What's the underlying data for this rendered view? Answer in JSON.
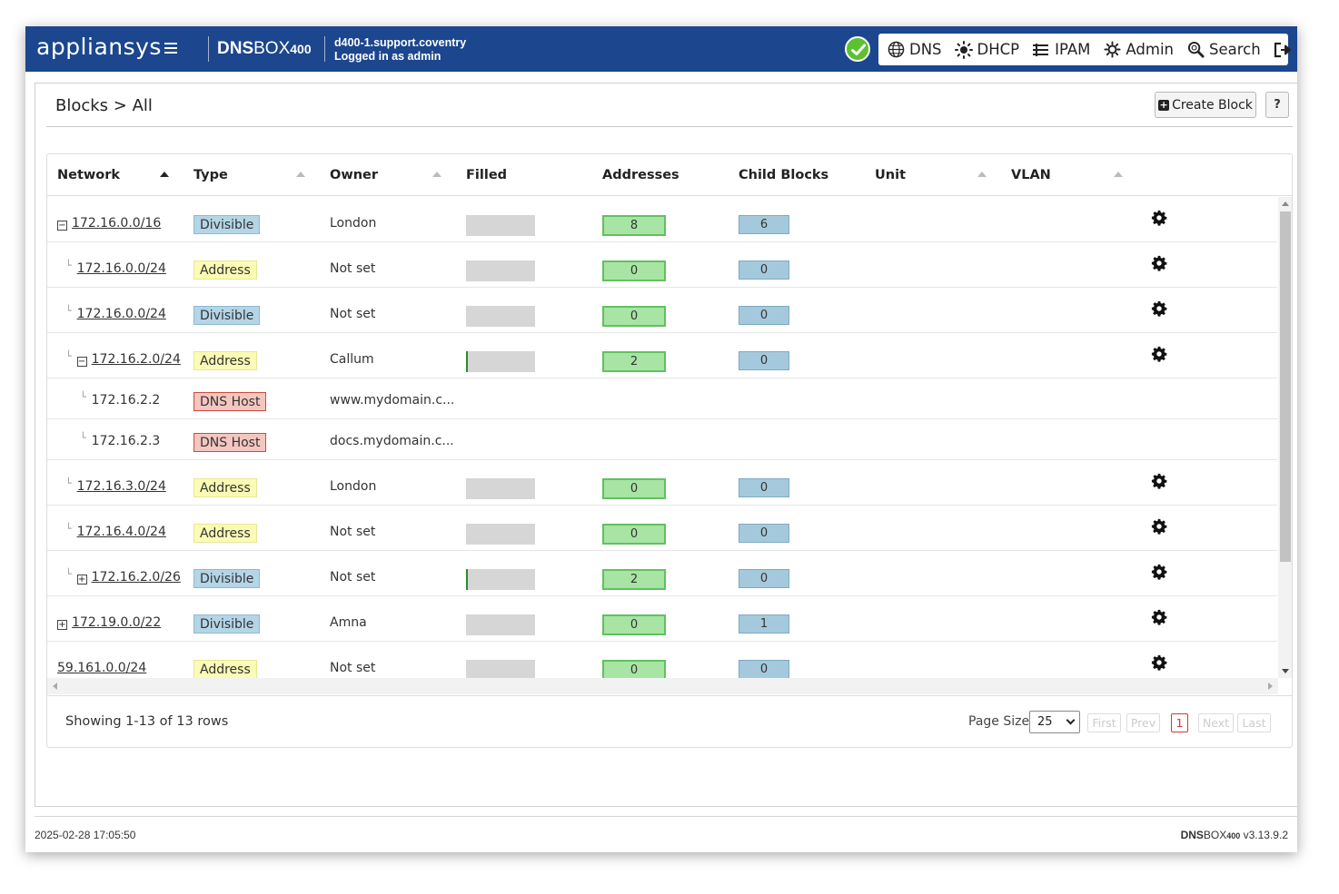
{
  "header": {
    "logo": "appliansys",
    "product_bold": "DNS",
    "product_rest": "BOX",
    "product_model": "400",
    "hostname": "d400-1.support.coventry",
    "login": "Logged in as admin",
    "status_icon": "check-circle-icon",
    "status_color": "#5cc12e",
    "brand_color": "#1c468d"
  },
  "nav": [
    {
      "label": "DNS",
      "icon": "globe-icon"
    },
    {
      "label": "DHCP",
      "icon": "sun-icon"
    },
    {
      "label": "IPAM",
      "icon": "ipam-list-icon"
    },
    {
      "label": "Admin",
      "icon": "gear-icon"
    },
    {
      "label": "Search",
      "icon": "search-icon"
    }
  ],
  "logout_icon": "logout-icon",
  "page": {
    "breadcrumb": "Blocks > All",
    "create_label": "Create Block",
    "help_label": "?"
  },
  "table": {
    "columns": [
      "Network",
      "Type",
      "Owner",
      "Filled",
      "Addresses",
      "Child Blocks",
      "Unit",
      "VLAN"
    ],
    "rows": [
      {
        "network": "172.16.0.0/16",
        "level": 0,
        "expander": "minus",
        "link": true,
        "type": "Divisible",
        "owner": "London",
        "filled": 0,
        "addresses": "8",
        "child_blocks": "6",
        "gear": true
      },
      {
        "network": "172.16.0.0/24",
        "level": 1,
        "expander": "",
        "link": true,
        "type": "Address",
        "owner": "Not set",
        "filled": 0,
        "addresses": "0",
        "child_blocks": "0",
        "gear": true
      },
      {
        "network": "172.16.0.0/24",
        "level": 1,
        "expander": "",
        "link": true,
        "type": "Divisible",
        "owner": "Not set",
        "filled": 0,
        "addresses": "0",
        "child_blocks": "0",
        "gear": true
      },
      {
        "network": "172.16.2.0/24",
        "level": 1,
        "expander": "minus",
        "link": true,
        "type": "Address",
        "owner": "Callum",
        "filled": 0.01,
        "addresses": "2",
        "child_blocks": "0",
        "gear": true
      },
      {
        "network": "172.16.2.2",
        "level": 2,
        "expander": "",
        "link": false,
        "type": "DNS Host",
        "owner": "www.mydomain.c...",
        "host": true
      },
      {
        "network": "172.16.2.3",
        "level": 2,
        "expander": "",
        "link": false,
        "type": "DNS Host",
        "owner": "docs.mydomain.c...",
        "host": true
      },
      {
        "network": "172.16.3.0/24",
        "level": 1,
        "expander": "",
        "link": true,
        "type": "Address",
        "owner": "London",
        "filled": 0,
        "addresses": "0",
        "child_blocks": "0",
        "gear": true
      },
      {
        "network": "172.16.4.0/24",
        "level": 1,
        "expander": "",
        "link": true,
        "type": "Address",
        "owner": "Not set",
        "filled": 0,
        "addresses": "0",
        "child_blocks": "0",
        "gear": true
      },
      {
        "network": "172.16.2.0/26",
        "level": 1,
        "expander": "plus",
        "link": true,
        "type": "Divisible",
        "owner": "Not set",
        "filled": 0.03,
        "addresses": "2",
        "child_blocks": "0",
        "gear": true
      },
      {
        "network": "172.19.0.0/22",
        "level": 0,
        "expander": "plus",
        "link": true,
        "type": "Divisible",
        "owner": "Amna",
        "filled": 0,
        "addresses": "0",
        "child_blocks": "1",
        "gear": true
      },
      {
        "network": "59.161.0.0/24",
        "level": 0,
        "expander": "",
        "link": true,
        "type": "Address",
        "owner": "Not set",
        "filled": 0,
        "addresses": "0",
        "child_blocks": "0",
        "gear": true
      }
    ]
  },
  "pagination": {
    "showing": "Showing 1-13 of 13 rows",
    "page_size_label": "Page Size",
    "page_size": "25",
    "first": "First",
    "prev": "Prev",
    "current": "1",
    "next": "Next",
    "last": "Last"
  },
  "status_bar": {
    "timestamp": "2025-02-28 17:05:50",
    "version_bold": "DNS",
    "version_rest": "BOX",
    "version_model": "400",
    "version_number": " v3.13.9.2"
  }
}
